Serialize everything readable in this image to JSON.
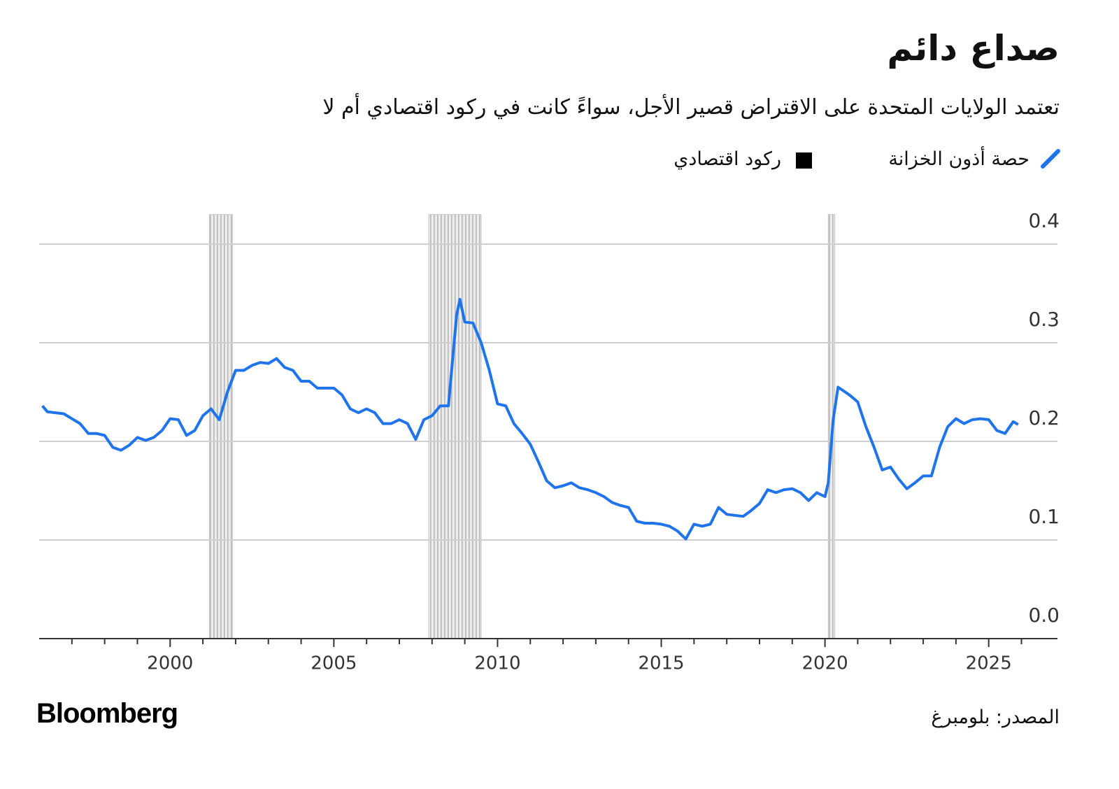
{
  "chart_data": {
    "type": "line",
    "title": "صداع دائم",
    "subtitle": "تعتمد الولايات المتحدة على الاقتراض قصير الأجل، سواءً كانت في ركود اقتصادي أم لا",
    "source": "المصدر: بلومبرغ",
    "brand": "Bloomberg",
    "x": [
      1996.1,
      1996.25,
      1996.5,
      1996.75,
      1997.0,
      1997.25,
      1997.5,
      1997.75,
      1998.0,
      1998.25,
      1998.5,
      1998.75,
      1999.0,
      1999.25,
      1999.5,
      1999.75,
      2000.0,
      2000.25,
      2000.5,
      2000.75,
      2001.0,
      2001.25,
      2001.5,
      2001.75,
      2002.0,
      2002.25,
      2002.5,
      2002.75,
      2003.0,
      2003.25,
      2003.5,
      2003.75,
      2004.0,
      2004.25,
      2004.5,
      2004.75,
      2005.0,
      2005.25,
      2005.5,
      2005.75,
      2006.0,
      2006.25,
      2006.5,
      2006.75,
      2007.0,
      2007.25,
      2007.5,
      2007.75,
      2008.0,
      2008.25,
      2008.5,
      2008.75,
      2008.85,
      2009.0,
      2009.25,
      2009.5,
      2009.75,
      2010.0,
      2010.25,
      2010.5,
      2010.75,
      2011.0,
      2011.25,
      2011.5,
      2011.75,
      2012.0,
      2012.25,
      2012.5,
      2012.75,
      2013.0,
      2013.25,
      2013.5,
      2013.75,
      2014.0,
      2014.25,
      2014.5,
      2014.75,
      2015.0,
      2015.25,
      2015.5,
      2015.75,
      2016.0,
      2016.25,
      2016.5,
      2016.75,
      2017.0,
      2017.25,
      2017.5,
      2017.75,
      2018.0,
      2018.25,
      2018.5,
      2018.75,
      2019.0,
      2019.25,
      2019.5,
      2019.75,
      2020.0,
      2020.1,
      2020.25,
      2020.4,
      2020.75,
      2021.0,
      2021.25,
      2021.5,
      2021.75,
      2022.0,
      2022.25,
      2022.5,
      2022.75,
      2023.0,
      2023.25,
      2023.5,
      2023.75,
      2024.0,
      2024.25,
      2024.5,
      2024.75,
      2025.0,
      2025.25,
      2025.5,
      2025.75,
      2025.9
    ],
    "series": [
      {
        "name": "حصة أذون الخزانة",
        "color": "#1f74ec",
        "values": [
          0.236,
          0.23,
          0.229,
          0.228,
          0.223,
          0.218,
          0.208,
          0.208,
          0.206,
          0.194,
          0.191,
          0.196,
          0.204,
          0.201,
          0.204,
          0.211,
          0.223,
          0.222,
          0.206,
          0.211,
          0.226,
          0.233,
          0.222,
          0.25,
          0.272,
          0.272,
          0.277,
          0.28,
          0.279,
          0.284,
          0.275,
          0.272,
          0.261,
          0.261,
          0.254,
          0.254,
          0.254,
          0.247,
          0.233,
          0.229,
          0.233,
          0.229,
          0.218,
          0.218,
          0.222,
          0.218,
          0.202,
          0.222,
          0.226,
          0.236,
          0.236,
          0.328,
          0.344,
          0.321,
          0.32,
          0.3,
          0.272,
          0.238,
          0.236,
          0.218,
          0.208,
          0.197,
          0.179,
          0.16,
          0.153,
          0.155,
          0.158,
          0.153,
          0.151,
          0.148,
          0.144,
          0.138,
          0.135,
          0.133,
          0.119,
          0.117,
          0.117,
          0.116,
          0.114,
          0.109,
          0.101,
          0.116,
          0.114,
          0.116,
          0.133,
          0.126,
          0.125,
          0.124,
          0.13,
          0.137,
          0.151,
          0.148,
          0.151,
          0.152,
          0.148,
          0.14,
          0.148,
          0.144,
          0.158,
          0.222,
          0.255,
          0.247,
          0.24,
          0.215,
          0.194,
          0.171,
          0.174,
          0.162,
          0.152,
          0.158,
          0.165,
          0.165,
          0.194,
          0.215,
          0.223,
          0.218,
          0.222,
          0.223,
          0.222,
          0.211,
          0.208,
          0.22,
          0.217
        ]
      }
    ],
    "recessions": {
      "name": "ركود اقتصادي",
      "color": "#c4c4c4",
      "spans": [
        [
          2001.2,
          2001.9
        ],
        [
          2007.9,
          2009.5
        ],
        [
          2020.1,
          2020.3
        ]
      ]
    },
    "xlim": [
      1996,
      2027.1
    ],
    "xticks": [
      2000,
      2005,
      2010,
      2015,
      2020,
      2025
    ],
    "xminorticks": [
      1997,
      1998,
      1999,
      2001,
      2002,
      2003,
      2004,
      2006,
      2007,
      2008,
      2009,
      2011,
      2012,
      2013,
      2014,
      2016,
      2017,
      2018,
      2019,
      2021,
      2022,
      2023,
      2024,
      2026
    ],
    "ylim": [
      0,
      0.43
    ],
    "yticks": [
      {
        "value": 0,
        "label": "0.0"
      },
      0.1,
      0.2,
      0.3,
      0.4
    ],
    "grid": true
  }
}
